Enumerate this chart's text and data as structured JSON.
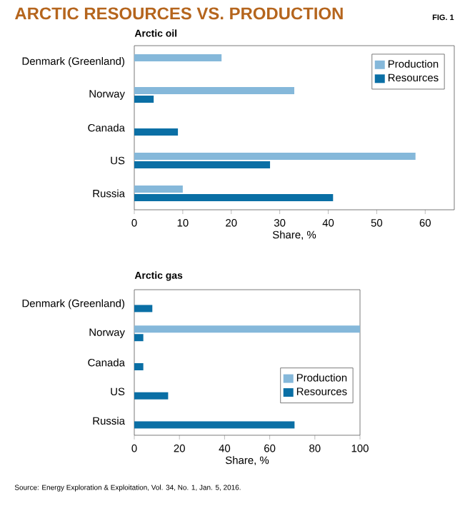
{
  "chart_data": [
    {
      "type": "bar",
      "orientation": "horizontal",
      "title": "ARCTIC RESOURCES VS. PRODUCTION",
      "subtitle": "Arctic oil",
      "annotations": [
        "FIG. 1"
      ],
      "xlabel": "Share, %",
      "categories": [
        "Denmark (Greenland)",
        "Norway",
        "Canada",
        "US",
        "Russia"
      ],
      "xlim": [
        0,
        66
      ],
      "xticks": [
        0,
        10,
        20,
        30,
        40,
        50,
        60
      ],
      "legend": "top right",
      "series": [
        {
          "name": "Production",
          "color": "#85b8da",
          "values": [
            18,
            33,
            null,
            58,
            10
          ]
        },
        {
          "name": "Resources",
          "color": "#0a6fa5",
          "values": [
            null,
            4,
            9,
            28,
            41
          ]
        }
      ]
    },
    {
      "type": "bar",
      "orientation": "horizontal",
      "title": "Arctic gas",
      "annotations": [
        "Source: Energy Exploration & Exploitation, Vol. 34, No. 1, Jan. 5, 2016."
      ],
      "xlabel": "Share, %",
      "categories": [
        "Denmark (Greenland)",
        "Norway",
        "Canada",
        "US",
        "Russia"
      ],
      "xlim": [
        0,
        100
      ],
      "xticks": [
        0,
        20,
        40,
        60,
        80,
        100
      ],
      "legend": "bottom right",
      "series": [
        {
          "name": "Production",
          "color": "#85b8da",
          "values": [
            null,
            100,
            null,
            null,
            null
          ]
        },
        {
          "name": "Resources",
          "color": "#0a6fa5",
          "values": [
            8,
            4,
            4,
            15,
            71
          ]
        }
      ]
    }
  ]
}
